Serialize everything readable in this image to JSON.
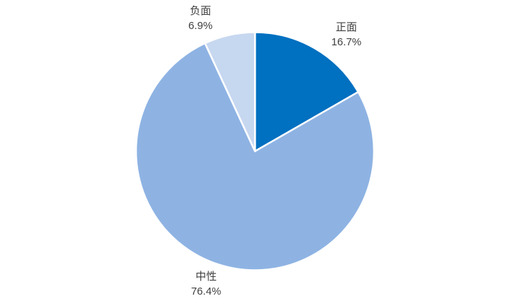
{
  "chart_data": {
    "type": "pie",
    "title": "",
    "legend_position": "none",
    "start_angle_deg": 0,
    "direction": "clockwise",
    "stroke_color": "#FFFFFF",
    "slices": [
      {
        "id": "positive",
        "label": "正面",
        "value": 16.7,
        "display": "16.7%",
        "color": "#0070C0"
      },
      {
        "id": "neutral",
        "label": "中性",
        "value": 76.4,
        "display": "76.4%",
        "color": "#8EB3E3"
      },
      {
        "id": "negative",
        "label": "负面",
        "value": 6.9,
        "display": "6.9%",
        "color": "#C6D7F0"
      }
    ],
    "label_text_color": "#404040"
  }
}
